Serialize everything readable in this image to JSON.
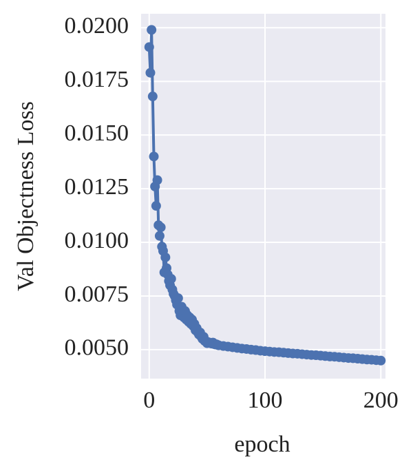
{
  "chart_data": {
    "type": "line",
    "xlabel": "epoch",
    "ylabel": "Val Objectness Loss",
    "xlim": [
      -7,
      204
    ],
    "ylim": [
      0.00365,
      0.02065
    ],
    "xticks": [
      0,
      100,
      200
    ],
    "yticks": [
      {
        "value": 0.005,
        "label": "0.0050"
      },
      {
        "value": 0.0075,
        "label": "0.0075"
      },
      {
        "value": 0.01,
        "label": "0.0100"
      },
      {
        "value": 0.0125,
        "label": "0.0125"
      },
      {
        "value": 0.015,
        "label": "0.0150"
      },
      {
        "value": 0.0175,
        "label": "0.0175"
      },
      {
        "value": 0.02,
        "label": "0.0200"
      }
    ],
    "grid": true,
    "series": [
      {
        "color": "#4c72b0",
        "x": [
          0,
          1,
          2,
          3,
          4,
          5,
          6,
          7,
          8,
          9,
          10,
          11,
          12,
          13,
          14,
          15,
          16,
          17,
          18,
          19,
          20,
          21,
          22,
          23,
          24,
          25,
          26,
          27,
          28,
          29,
          30,
          31,
          32,
          33,
          34,
          35,
          36,
          37,
          38,
          39,
          40,
          41,
          42,
          43,
          44,
          45,
          46,
          47,
          48,
          49,
          50,
          51,
          52,
          53,
          54,
          55,
          56,
          57,
          58,
          59,
          60,
          64,
          68,
          72,
          76,
          80,
          84,
          88,
          92,
          96,
          100,
          104,
          108,
          112,
          116,
          120,
          124,
          128,
          132,
          136,
          140,
          144,
          148,
          152,
          156,
          160,
          164,
          168,
          172,
          176,
          180,
          184,
          188,
          192,
          196,
          200
        ],
        "values": [
          0.0191,
          0.0179,
          0.0199,
          0.0168,
          0.014,
          0.0126,
          0.0117,
          0.0129,
          0.0108,
          0.0103,
          0.0107,
          0.0098,
          0.0096,
          0.0086,
          0.0093,
          0.0088,
          0.0085,
          0.0082,
          0.008,
          0.0083,
          0.0078,
          0.0076,
          0.0075,
          0.0073,
          0.0071,
          0.0074,
          0.0068,
          0.0066,
          0.007,
          0.0067,
          0.0065,
          0.0068,
          0.0064,
          0.0066,
          0.0063,
          0.0065,
          0.0062,
          0.0064,
          0.0061,
          0.0062,
          0.0059,
          0.006,
          0.0058,
          0.0057,
          0.0058,
          0.0056,
          0.0055,
          0.0056,
          0.0054,
          0.0054,
          0.0053,
          0.00535,
          0.00532,
          0.0053,
          0.00528,
          0.00533,
          0.00526,
          0.00524,
          0.00525,
          0.00522,
          0.0052,
          0.00517,
          0.00514,
          0.00511,
          0.00508,
          0.00505,
          0.00503,
          0.005,
          0.00498,
          0.00495,
          0.00493,
          0.00491,
          0.00489,
          0.00488,
          0.00486,
          0.00484,
          0.00482,
          0.00481,
          0.00479,
          0.00477,
          0.00475,
          0.00474,
          0.00472,
          0.0047,
          0.00468,
          0.00467,
          0.00465,
          0.00463,
          0.00461,
          0.0046,
          0.00458,
          0.00456,
          0.00454,
          0.00453,
          0.00451,
          0.00449
        ]
      }
    ]
  }
}
